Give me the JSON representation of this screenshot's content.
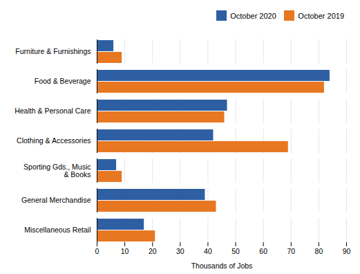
{
  "chart_data": {
    "type": "bar",
    "orientation": "horizontal",
    "categories": [
      "Furniture & Furnishings",
      "Food & Beverage",
      "Health & Personal Care",
      "Clothing & Accessories",
      "Sporting Gds., Music\n& Books",
      "General Merchandise",
      "Miscellaneous Retail"
    ],
    "series": [
      {
        "name": "October 2020",
        "color": "#2E5FA3",
        "values": [
          6,
          84,
          47,
          42,
          7,
          39,
          17
        ]
      },
      {
        "name": "October 2019",
        "color": "#E87722",
        "values": [
          9,
          82,
          46,
          69,
          9,
          43,
          21
        ]
      }
    ],
    "xlabel": "Thousands of Jobs",
    "xlim": [
      0,
      90
    ],
    "xticks": [
      0,
      10,
      20,
      30,
      40,
      50,
      60,
      70,
      80,
      90
    ],
    "grid": true,
    "legend": "right"
  }
}
